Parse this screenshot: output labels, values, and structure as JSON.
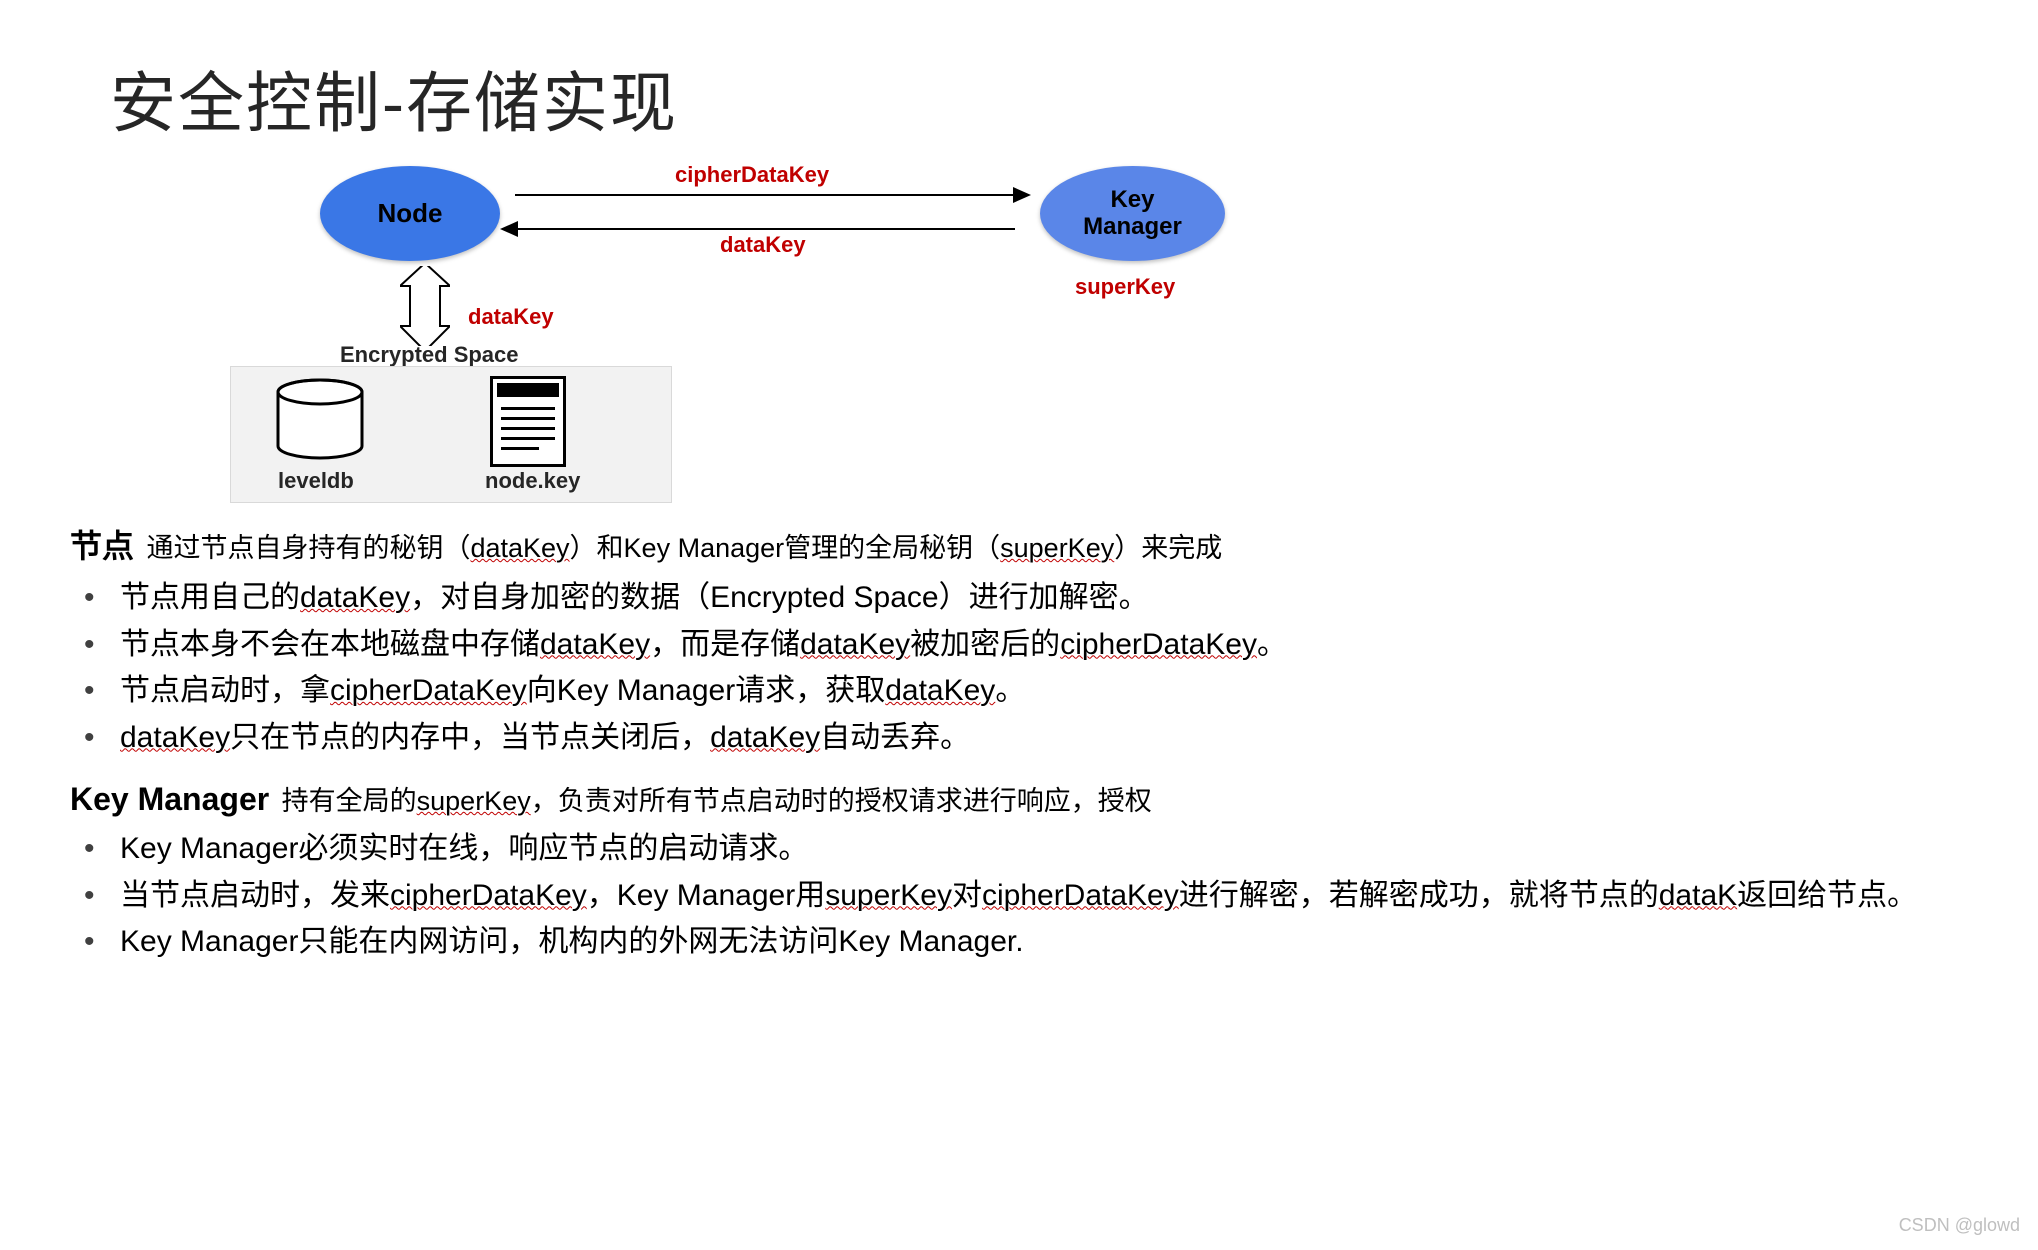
{
  "title": "安全控制-存储实现",
  "diagram": {
    "node_label": "Node",
    "km_label": "Key\nManager",
    "cipher_arrow": "cipherDataKey",
    "data_arrow": "dataKey",
    "super_key": "superKey",
    "down_data": "dataKey",
    "encrypted_title": "Encrypted Space",
    "leveldb": "leveldb",
    "nodekey": "node.key",
    "ellipse_fill_node": "#3a77e6",
    "ellipse_fill_km": "#5a86e8",
    "label_color": "#c00000",
    "box_fill": "#f2f2f2"
  },
  "section1": {
    "head": "节点",
    "sub_parts": [
      "通过节点自身持有的秘钥（",
      "dataKey",
      "）和Key Manager管理的全局秘钥（",
      "superKey",
      "）来完成"
    ],
    "bullets": [
      {
        "segs": [
          "节点用自己的",
          {
            "u": "dataKey"
          },
          "，对自身加密的数据（Encrypted Space）进行加解密。"
        ]
      },
      {
        "segs": [
          "节点本身不会在本地磁盘中存储",
          {
            "u": "dataKey"
          },
          "，而是存储",
          {
            "u": "dataKey"
          },
          "被加密后的",
          {
            "u": "cipherDataKey"
          },
          "。"
        ]
      },
      {
        "segs": [
          "节点启动时，拿",
          {
            "u": "cipherDataKey"
          },
          "向Key Manager请求，获取",
          {
            "u": "dataKey"
          },
          "。"
        ]
      },
      {
        "segs": [
          {
            "u": "dataKey"
          },
          "只在节点的内存中，当节点关闭后，",
          {
            "u": "dataKey"
          },
          "自动丢弃。"
        ]
      }
    ]
  },
  "section2": {
    "head": "Key Manager",
    "sub_parts": [
      "持有全局的",
      "superKey",
      "，负责对所有节点启动时的授权请求进行响应，授权"
    ],
    "bullets": [
      {
        "segs": [
          "Key Manager必须实时在线，响应节点的启动请求。"
        ]
      },
      {
        "segs": [
          "当节点启动时，发来",
          {
            "u": "cipherDataKey"
          },
          "，Key Manager用",
          {
            "u": "superKey"
          },
          "对",
          {
            "u": "cipherDataKey"
          },
          "进行解密，若解密成功，就将节点的",
          {
            "u": "dataK"
          },
          "返回给节点。"
        ]
      },
      {
        "segs": [
          "Key Manager只能在内网访问，机构内的外网无法访问Key Manager."
        ]
      }
    ]
  },
  "watermark": "CSDN @glowd"
}
